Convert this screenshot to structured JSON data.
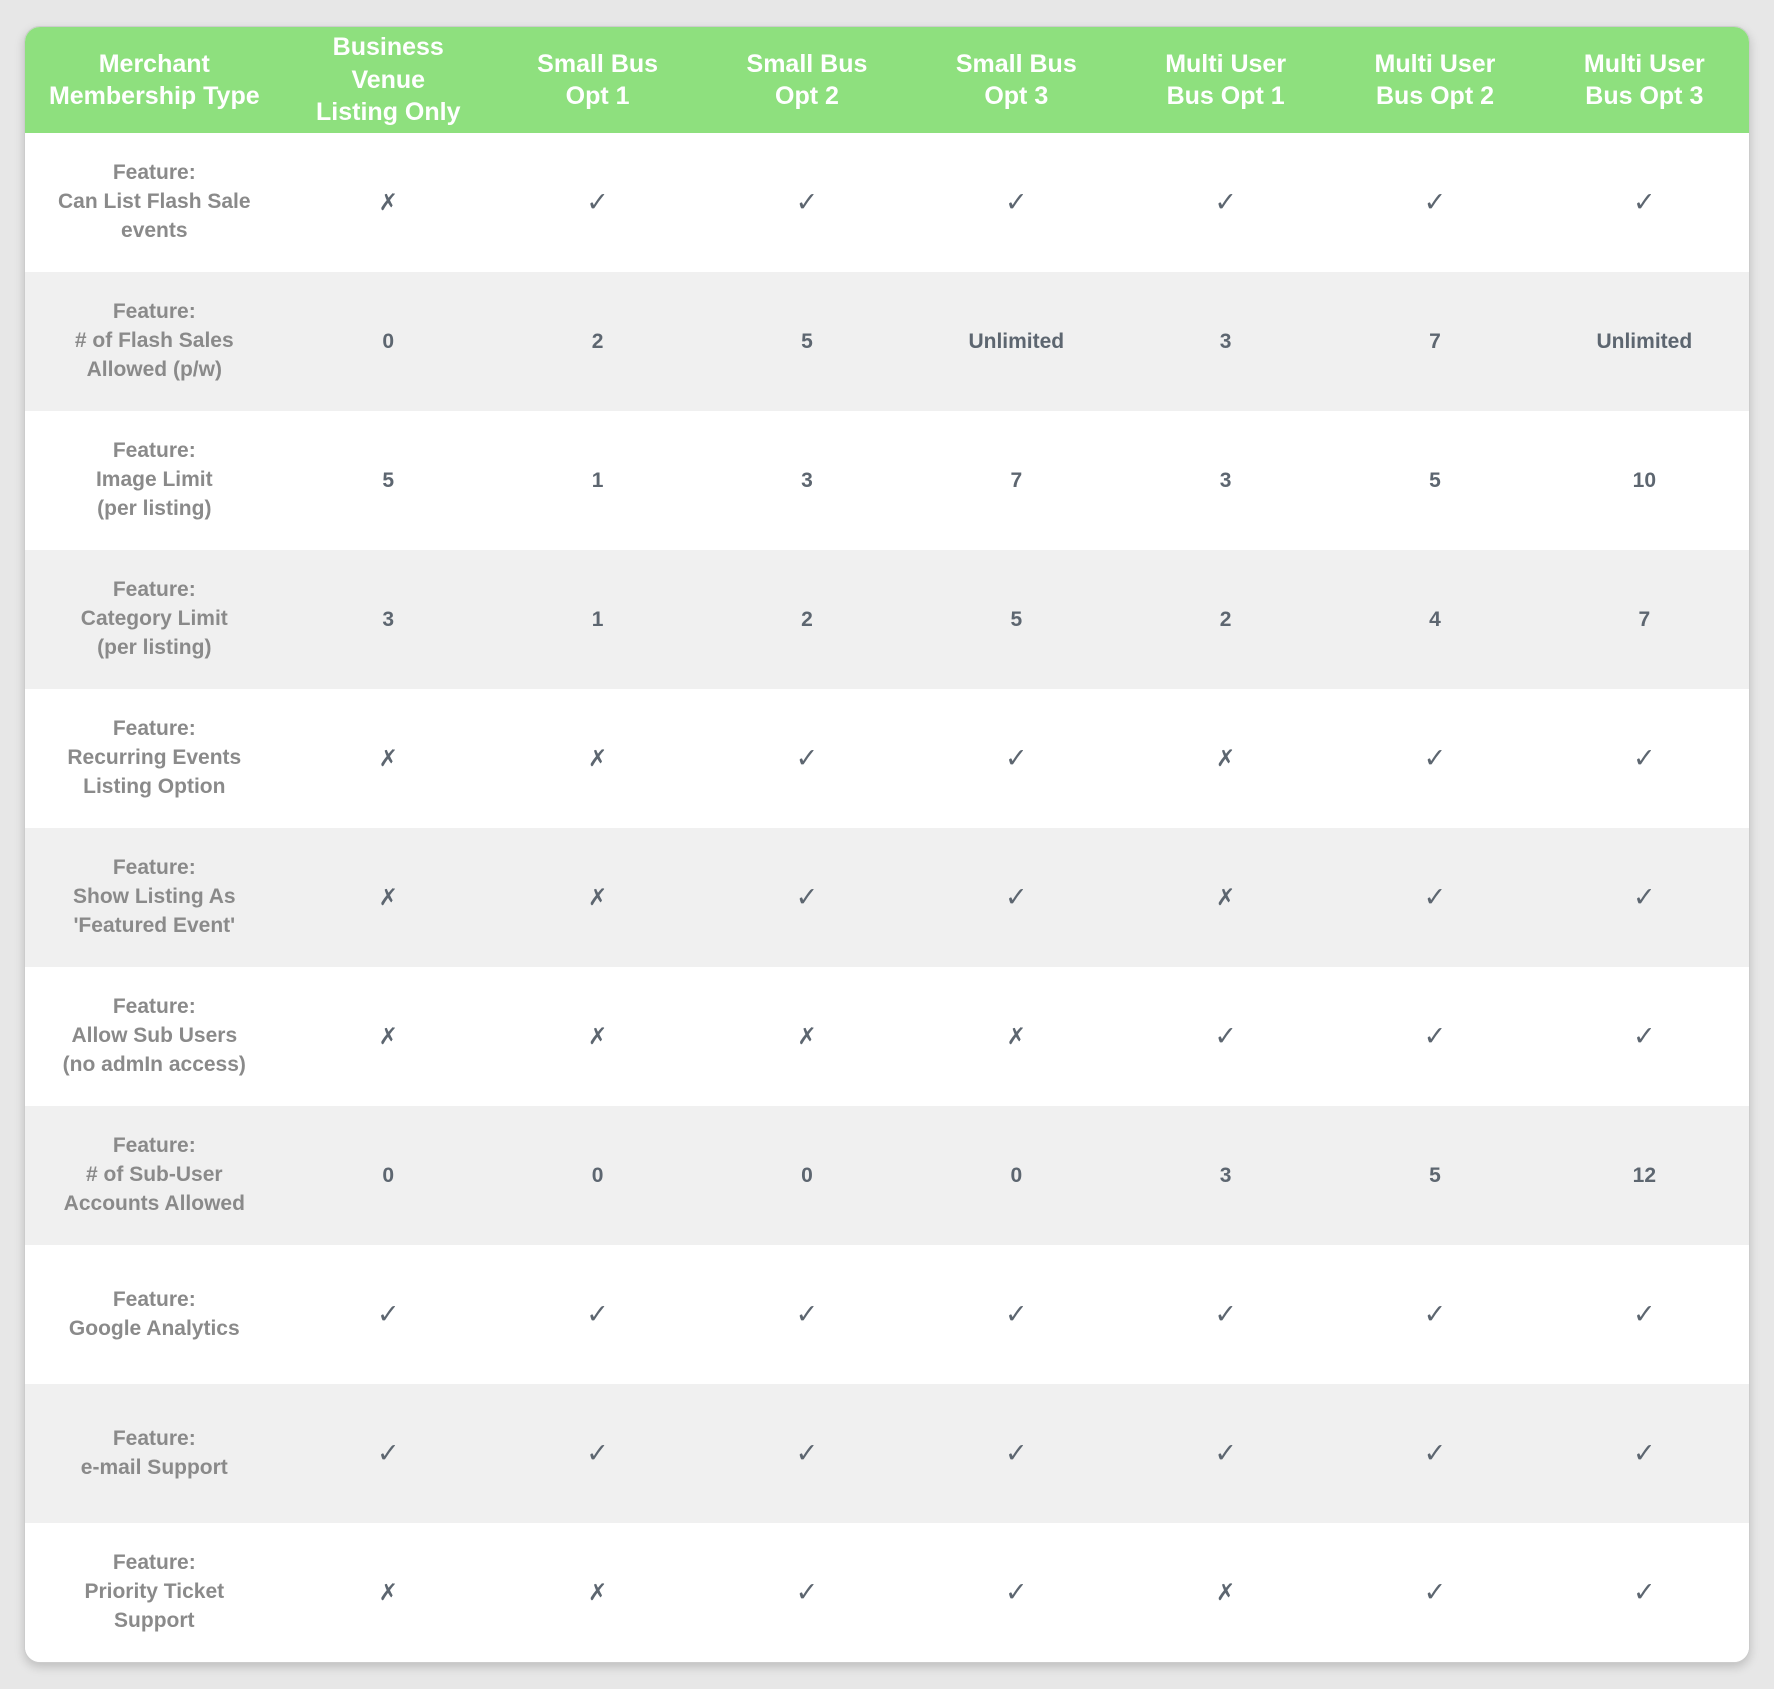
{
  "colors": {
    "header_bg": "#8ee07e",
    "header_text": "#ffffff",
    "row_alt_bg": "#f0f0f0",
    "label_text": "#8a8a8a",
    "value_text": "#5d6670"
  },
  "marks": {
    "check": "✓",
    "x": "✗"
  },
  "table": {
    "columns": [
      {
        "lines": [
          "Merchant",
          "Membership Type"
        ]
      },
      {
        "lines": [
          "Business Venue",
          "Listing Only"
        ]
      },
      {
        "lines": [
          "Small Bus",
          "Opt 1"
        ]
      },
      {
        "lines": [
          "Small Bus",
          "Opt 2"
        ]
      },
      {
        "lines": [
          "Small Bus",
          "Opt 3"
        ]
      },
      {
        "lines": [
          "Multi User",
          "Bus Opt 1"
        ]
      },
      {
        "lines": [
          "Multi User",
          "Bus Opt 2"
        ]
      },
      {
        "lines": [
          "Multi User",
          "Bus Opt 3"
        ]
      }
    ],
    "rows": [
      {
        "feature_lines": [
          "Feature:",
          "Can List Flash Sale",
          "events"
        ],
        "values": [
          "x",
          "check",
          "check",
          "check",
          "check",
          "check",
          "check"
        ]
      },
      {
        "feature_lines": [
          "Feature:",
          "# of Flash Sales",
          "Allowed (p/w)"
        ],
        "values": [
          "0",
          "2",
          "5",
          "Unlimited",
          "3",
          "7",
          "Unlimited"
        ]
      },
      {
        "feature_lines": [
          "Feature:",
          "Image Limit",
          "(per listing)"
        ],
        "values": [
          "5",
          "1",
          "3",
          "7",
          "3",
          "5",
          "10"
        ]
      },
      {
        "feature_lines": [
          "Feature:",
          "Category Limit",
          "(per listing)"
        ],
        "values": [
          "3",
          "1",
          "2",
          "5",
          "2",
          "4",
          "7"
        ]
      },
      {
        "feature_lines": [
          "Feature:",
          "Recurring Events",
          "Listing Option"
        ],
        "values": [
          "x",
          "x",
          "check",
          "check",
          "x",
          "check",
          "check"
        ]
      },
      {
        "feature_lines": [
          "Feature:",
          "Show Listing As",
          "'Featured Event'"
        ],
        "values": [
          "x",
          "x",
          "check",
          "check",
          "x",
          "check",
          "check"
        ]
      },
      {
        "feature_lines": [
          "Feature:",
          "Allow Sub Users",
          "(no admIn access)"
        ],
        "values": [
          "x",
          "x",
          "x",
          "x",
          "check",
          "check",
          "check"
        ]
      },
      {
        "feature_lines": [
          "Feature:",
          "# of Sub-User",
          "Accounts Allowed"
        ],
        "values": [
          "0",
          "0",
          "0",
          "0",
          "3",
          "5",
          "12"
        ]
      },
      {
        "feature_lines": [
          "Feature:",
          "Google Analytics"
        ],
        "values": [
          "check",
          "check",
          "check",
          "check",
          "check",
          "check",
          "check"
        ]
      },
      {
        "feature_lines": [
          "Feature:",
          "e-mail Support"
        ],
        "values": [
          "check",
          "check",
          "check",
          "check",
          "check",
          "check",
          "check"
        ]
      },
      {
        "feature_lines": [
          "Feature:",
          "Priority Ticket",
          "Support"
        ],
        "values": [
          "x",
          "x",
          "check",
          "check",
          "x",
          "check",
          "check"
        ]
      }
    ]
  }
}
